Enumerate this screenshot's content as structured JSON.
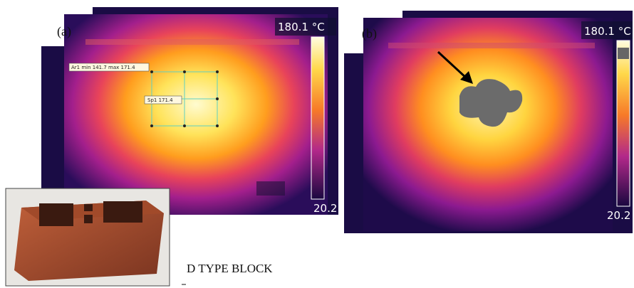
{
  "panels": [
    {
      "label": "(a)",
      "scale_max": "180.1 °C",
      "scale_min": "20.2",
      "area_label": "Ar1 min 141.7 max 171.4",
      "spot_label": "Sp1 171.4"
    },
    {
      "label": "(b)",
      "scale_max": "180.1 °C",
      "scale_min": "20.2"
    }
  ],
  "caption": "D TYPE BLOCK"
}
